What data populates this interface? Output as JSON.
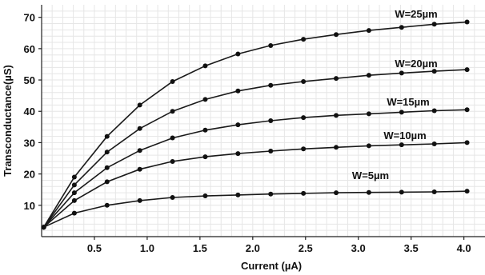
{
  "chart_data": {
    "type": "line",
    "title": "",
    "xlabel": "Current (µA)",
    "ylabel": "Transconductance(µS)",
    "xlim": [
      0,
      4.2
    ],
    "ylim": [
      0,
      74
    ],
    "x_ticks": [
      0.5,
      1.0,
      1.5,
      2.0,
      2.5,
      3.0,
      3.5,
      4.0
    ],
    "x_tick_labels": [
      "0.5",
      "1.0",
      "1.5",
      "2.0",
      "2.5",
      "3.0",
      "3.5",
      "4.0"
    ],
    "y_ticks": [
      10,
      20,
      30,
      40,
      50,
      60,
      70
    ],
    "y_tick_labels": [
      "10",
      "20",
      "30",
      "40",
      "50",
      "60",
      "70"
    ],
    "grid": true,
    "colors": {
      "line": "#1a1a1a",
      "grid": "#e6e6e6"
    },
    "x": [
      0.02,
      0.31,
      0.62,
      0.93,
      1.24,
      1.55,
      1.86,
      2.17,
      2.48,
      2.79,
      3.1,
      3.41,
      3.72,
      4.03
    ],
    "series": [
      {
        "name": "W=25µm",
        "values": [
          3,
          19,
          32,
          42,
          49.5,
          54.5,
          58.3,
          61,
          63,
          64.5,
          65.8,
          66.8,
          67.8,
          68.5
        ]
      },
      {
        "name": "W=20µm",
        "values": [
          3,
          16.5,
          27,
          34.5,
          40,
          43.8,
          46.5,
          48.3,
          49.5,
          50.5,
          51.5,
          52.2,
          52.8,
          53.3
        ]
      },
      {
        "name": "W=15µm",
        "values": [
          3,
          14,
          22,
          27.5,
          31.5,
          34,
          35.7,
          37,
          38,
          38.7,
          39.2,
          39.7,
          40.2,
          40.5
        ]
      },
      {
        "name": "W=10µm",
        "values": [
          3,
          11.5,
          17.5,
          21.5,
          24,
          25.5,
          26.5,
          27.3,
          28,
          28.5,
          29,
          29.3,
          29.6,
          30
        ]
      },
      {
        "name": "W=5µm",
        "values": [
          3,
          7.5,
          10,
          11.5,
          12.5,
          13,
          13.3,
          13.6,
          13.8,
          14,
          14.1,
          14.2,
          14.3,
          14.5
        ]
      }
    ],
    "annotations": [
      {
        "text": "W=25µm",
        "series": "W=25µm"
      },
      {
        "text": "W=20µm",
        "series": "W=20µm"
      },
      {
        "text": "W=15µm",
        "series": "W=15µm"
      },
      {
        "text": "W=10µm",
        "series": "W=10µm"
      },
      {
        "text": "W=5µm",
        "series": "W=5µm"
      }
    ]
  }
}
